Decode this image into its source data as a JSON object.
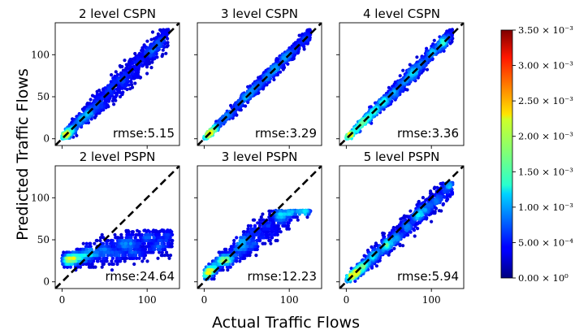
{
  "figure": {
    "ylabel": "Predicted Traffic Flows",
    "xlabel": "Actual Traffic Flows"
  },
  "colorbar": {
    "colormap": "jet",
    "range": [
      0,
      0.0035
    ],
    "tick_labels": [
      "0.00 × 10⁰",
      "5.00 × 10⁻⁴",
      "1.00 × 10⁻³",
      "1.50 × 10⁻³",
      "2.00 × 10⁻³",
      "2.50 × 10⁻³",
      "3.00 × 10⁻³",
      "3.50 × 10⁻³"
    ]
  },
  "chart_data": [
    {
      "type": "scatter",
      "title": "2 level CSPN",
      "annotation": "rmse:5.15",
      "xlim": [
        -8,
        138
      ],
      "ylim": [
        -8,
        138
      ],
      "xticks": [
        0,
        100
      ],
      "yticks": [
        0,
        50,
        100
      ],
      "xtick_labels": [],
      "ytick_labels": [
        "0",
        "50",
        "100"
      ],
      "reference_line": "y = x",
      "density_colormap": "jet",
      "points_profile": {
        "x_range": [
          0,
          125
        ],
        "slope": 1.0,
        "spread": 11,
        "y_floor": 0,
        "y_cap": 130
      }
    },
    {
      "type": "scatter",
      "title": "3 level CSPN",
      "annotation": "rmse:3.29",
      "xlim": [
        -8,
        138
      ],
      "ylim": [
        -8,
        138
      ],
      "xticks": [
        0,
        100
      ],
      "yticks": [
        0,
        50,
        100
      ],
      "xtick_labels": [],
      "ytick_labels": [],
      "reference_line": "y = x",
      "density_colormap": "jet",
      "points_profile": {
        "x_range": [
          0,
          125
        ],
        "slope": 1.0,
        "spread": 6,
        "y_floor": 0,
        "y_cap": 130
      }
    },
    {
      "type": "scatter",
      "title": "4 level CSPN",
      "annotation": "rmse:3.36",
      "xlim": [
        -8,
        138
      ],
      "ylim": [
        -8,
        138
      ],
      "xticks": [
        0,
        100
      ],
      "yticks": [
        0,
        50,
        100
      ],
      "xtick_labels": [],
      "ytick_labels": [],
      "reference_line": "y = x",
      "density_colormap": "jet",
      "points_profile": {
        "x_range": [
          0,
          125
        ],
        "slope": 1.0,
        "spread": 7,
        "y_floor": 0,
        "y_cap": 130
      }
    },
    {
      "type": "scatter",
      "title": "2 level PSPN",
      "annotation": "rmse:24.64",
      "xlim": [
        -8,
        138
      ],
      "ylim": [
        -8,
        138
      ],
      "xticks": [
        0,
        100
      ],
      "yticks": [
        0,
        50,
        100
      ],
      "xtick_labels": [
        "0",
        "100"
      ],
      "ytick_labels": [
        "0",
        "50",
        "100"
      ],
      "reference_line": "y = x",
      "density_colormap": "jet",
      "points_profile": {
        "x_range": [
          0,
          130
        ],
        "slope": 0.2,
        "intercept": 25,
        "spread": 12,
        "y_floor": 10,
        "y_cap": 62
      }
    },
    {
      "type": "scatter",
      "title": "3 level PSPN",
      "annotation": "rmse:12.23",
      "xlim": [
        -8,
        138
      ],
      "ylim": [
        -8,
        138
      ],
      "xticks": [
        0,
        100
      ],
      "yticks": [
        0,
        50,
        100
      ],
      "xtick_labels": [
        "0",
        "100"
      ],
      "ytick_labels": [],
      "reference_line": "y = x",
      "density_colormap": "jet",
      "points_profile": {
        "x_range": [
          0,
          125
        ],
        "slope": 0.75,
        "intercept": 8,
        "spread": 12,
        "y_floor": 0,
        "y_cap": 85
      }
    },
    {
      "type": "scatter",
      "title": "5 level PSPN",
      "annotation": "rmse:5.94",
      "xlim": [
        -8,
        138
      ],
      "ylim": [
        -8,
        138
      ],
      "xticks": [
        0,
        100
      ],
      "yticks": [
        0,
        50,
        100
      ],
      "xtick_labels": [
        "0",
        "100"
      ],
      "ytick_labels": [],
      "reference_line": "y = x",
      "density_colormap": "jet",
      "points_profile": {
        "x_range": [
          0,
          125
        ],
        "slope": 0.92,
        "intercept": 1,
        "spread": 10,
        "y_floor": 0,
        "y_cap": 118
      }
    }
  ]
}
